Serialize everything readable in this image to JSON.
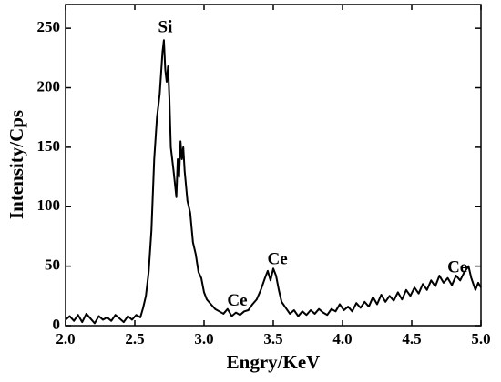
{
  "chart_data": {
    "type": "line",
    "x_label": "Engry/KeV",
    "y_label": "Intensity/Cps",
    "xlim": [
      2,
      5
    ],
    "ylim": [
      0,
      270
    ],
    "xticks": [
      {
        "value": 2,
        "label": "2.0"
      },
      {
        "value": 2.5,
        "label": "2.5"
      },
      {
        "value": 3,
        "label": "3.0"
      },
      {
        "value": 3.5,
        "label": "3.5"
      },
      {
        "value": 4,
        "label": "4.0"
      },
      {
        "value": 4.5,
        "label": "4.5"
      },
      {
        "value": 5,
        "label": "5.0"
      }
    ],
    "yticks": [
      0,
      50,
      100,
      150,
      200,
      250
    ],
    "grid": false,
    "annotations": [
      {
        "text": "Si",
        "x": 2.72,
        "y": 250
      },
      {
        "text": "Ce",
        "x": 3.24,
        "y": 20
      },
      {
        "text": "Ce",
        "x": 3.53,
        "y": 55
      },
      {
        "text": "Ce",
        "x": 4.83,
        "y": 48
      }
    ],
    "series": [
      {
        "color": "#000000",
        "x": [
          2.0,
          2.03,
          2.06,
          2.09,
          2.12,
          2.15,
          2.18,
          2.21,
          2.24,
          2.27,
          2.3,
          2.33,
          2.36,
          2.39,
          2.42,
          2.45,
          2.48,
          2.51,
          2.54,
          2.56,
          2.58,
          2.6,
          2.62,
          2.64,
          2.66,
          2.68,
          2.7,
          2.71,
          2.72,
          2.73,
          2.74,
          2.75,
          2.76,
          2.78,
          2.8,
          2.81,
          2.82,
          2.83,
          2.84,
          2.85,
          2.86,
          2.88,
          2.9,
          2.92,
          2.94,
          2.96,
          2.98,
          3.0,
          3.02,
          3.05,
          3.08,
          3.11,
          3.14,
          3.17,
          3.2,
          3.23,
          3.26,
          3.29,
          3.32,
          3.35,
          3.38,
          3.41,
          3.44,
          3.46,
          3.48,
          3.5,
          3.52,
          3.54,
          3.56,
          3.59,
          3.62,
          3.65,
          3.68,
          3.71,
          3.74,
          3.77,
          3.8,
          3.83,
          3.86,
          3.89,
          3.92,
          3.95,
          3.98,
          4.01,
          4.04,
          4.07,
          4.1,
          4.13,
          4.16,
          4.19,
          4.22,
          4.25,
          4.28,
          4.31,
          4.34,
          4.37,
          4.4,
          4.43,
          4.46,
          4.49,
          4.52,
          4.55,
          4.58,
          4.61,
          4.64,
          4.67,
          4.7,
          4.73,
          4.76,
          4.79,
          4.82,
          4.85,
          4.88,
          4.91,
          4.93,
          4.96,
          4.98,
          5.0
        ],
        "values": [
          5,
          8,
          4,
          9,
          3,
          10,
          6,
          2,
          8,
          5,
          7,
          4,
          9,
          6,
          3,
          8,
          5,
          9,
          7,
          15,
          25,
          45,
          80,
          140,
          175,
          195,
          230,
          240,
          215,
          205,
          218,
          190,
          150,
          130,
          108,
          140,
          125,
          155,
          140,
          150,
          130,
          105,
          95,
          70,
          60,
          45,
          40,
          28,
          22,
          18,
          14,
          12,
          10,
          14,
          8,
          11,
          9,
          12,
          13,
          18,
          22,
          30,
          40,
          46,
          38,
          48,
          42,
          30,
          20,
          15,
          10,
          13,
          8,
          12,
          9,
          13,
          10,
          14,
          11,
          9,
          14,
          12,
          18,
          13,
          16,
          12,
          19,
          15,
          20,
          16,
          24,
          18,
          26,
          20,
          25,
          21,
          28,
          22,
          30,
          25,
          32,
          27,
          35,
          30,
          38,
          33,
          42,
          36,
          40,
          34,
          42,
          38,
          45,
          50,
          40,
          30,
          36,
          32
        ]
      }
    ]
  }
}
